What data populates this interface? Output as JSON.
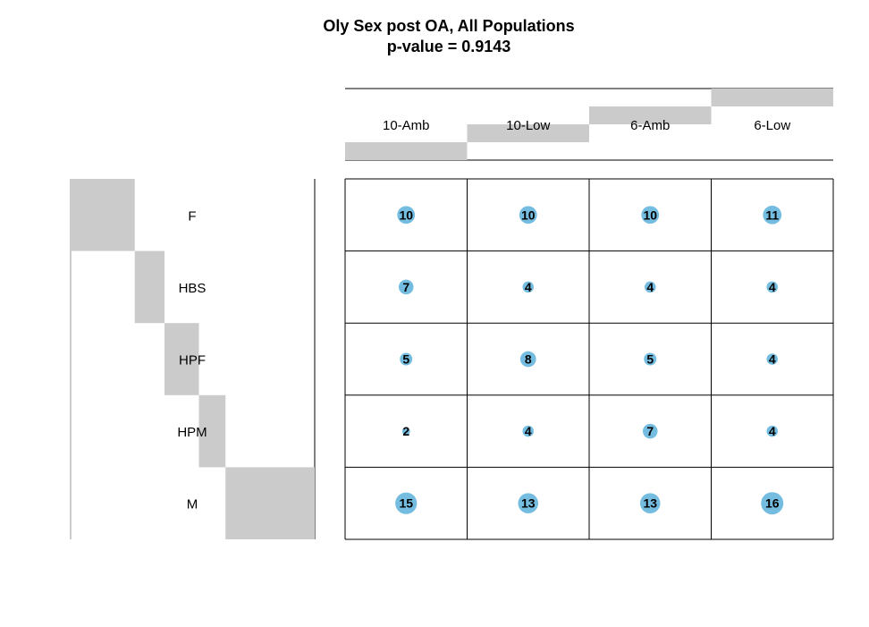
{
  "chart_data": {
    "type": "balloon",
    "title": "Oly Sex post OA, All Populations",
    "subtitle": "p-value = 0.9143",
    "columns": [
      "10-Amb",
      "10-Low",
      "6-Amb",
      "6-Low"
    ],
    "rows": [
      "F",
      "HBS",
      "HPF",
      "HPM",
      "M"
    ],
    "values": [
      [
        10,
        10,
        10,
        11
      ],
      [
        7,
        4,
        4,
        4
      ],
      [
        5,
        8,
        5,
        4
      ],
      [
        2,
        4,
        7,
        4
      ],
      [
        15,
        13,
        13,
        16
      ]
    ],
    "column_totals": [
      39,
      39,
      39,
      39
    ],
    "row_totals": [
      41,
      19,
      22,
      17,
      57
    ]
  },
  "colors": {
    "bubble": "#74bde0",
    "bar": "#cbcbcb",
    "grid": "#000000"
  }
}
